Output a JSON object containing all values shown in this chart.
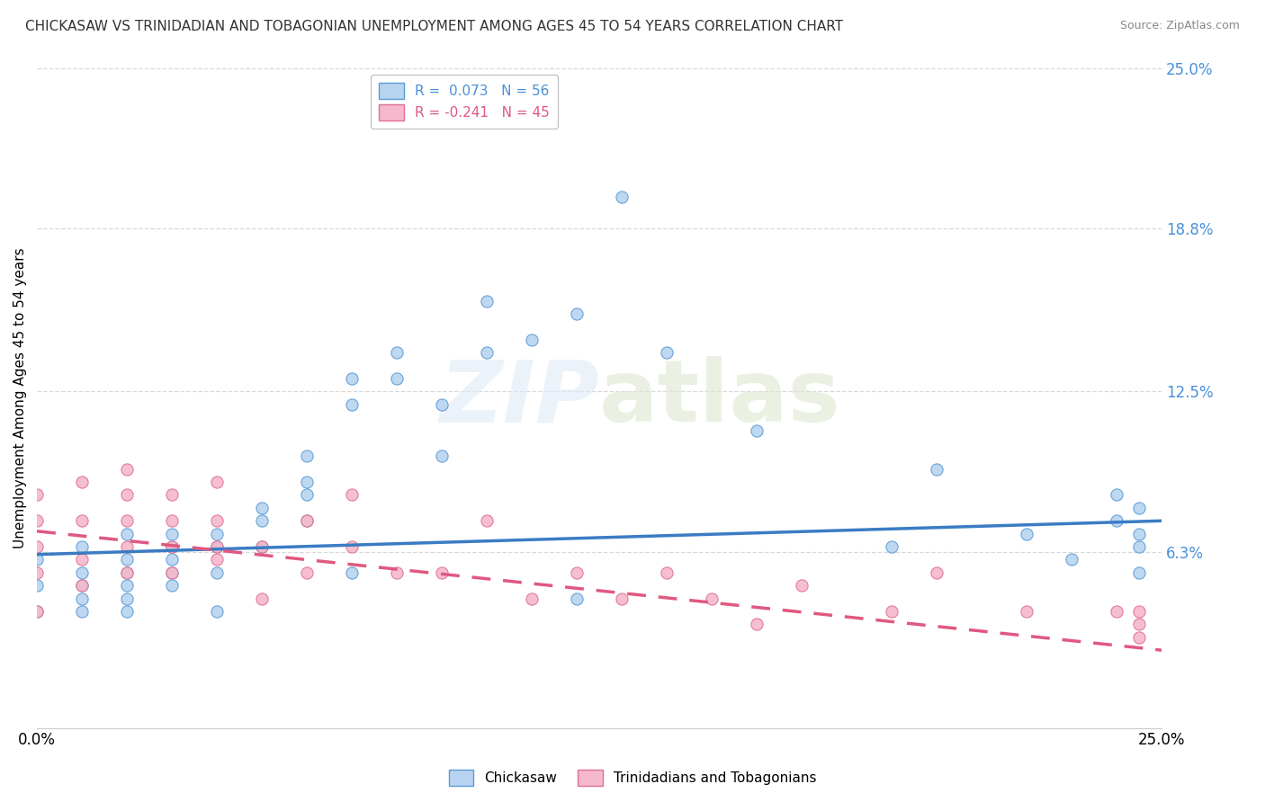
{
  "title": "CHICKASAW VS TRINIDADIAN AND TOBAGONIAN UNEMPLOYMENT AMONG AGES 45 TO 54 YEARS CORRELATION CHART",
  "source": "Source: ZipAtlas.com",
  "ylabel": "Unemployment Among Ages 45 to 54 years",
  "xlim": [
    0.0,
    0.25
  ],
  "ylim": [
    -0.005,
    0.25
  ],
  "ytick_labels": [
    "6.3%",
    "12.5%",
    "18.8%",
    "25.0%"
  ],
  "ytick_values": [
    0.063,
    0.125,
    0.188,
    0.25
  ],
  "chickasaw_color": "#b8d4f0",
  "chickasaw_edge": "#5b9bd5",
  "trinidadian_color": "#f5b8cc",
  "trinidadian_edge": "#e07090",
  "trendline_chickasaw_color": "#3a7cc4",
  "trendline_trinidadian_color": "#e05880",
  "grid_color": "#d8d8d8",
  "background_color": "#ffffff",
  "chickasaw_scatter_x": [
    0.0,
    0.0,
    0.0,
    0.01,
    0.01,
    0.01,
    0.01,
    0.01,
    0.02,
    0.02,
    0.02,
    0.02,
    0.02,
    0.02,
    0.03,
    0.03,
    0.03,
    0.03,
    0.03,
    0.04,
    0.04,
    0.04,
    0.04,
    0.05,
    0.05,
    0.05,
    0.06,
    0.06,
    0.06,
    0.06,
    0.07,
    0.07,
    0.07,
    0.08,
    0.08,
    0.09,
    0.09,
    0.1,
    0.1,
    0.11,
    0.12,
    0.12,
    0.13,
    0.14,
    0.16,
    0.19,
    0.2,
    0.22,
    0.23,
    0.24,
    0.24,
    0.245,
    0.245,
    0.245,
    0.245
  ],
  "chickasaw_scatter_y": [
    0.05,
    0.04,
    0.06,
    0.055,
    0.065,
    0.045,
    0.05,
    0.04,
    0.055,
    0.06,
    0.05,
    0.07,
    0.04,
    0.045,
    0.065,
    0.07,
    0.06,
    0.055,
    0.05,
    0.07,
    0.065,
    0.055,
    0.04,
    0.075,
    0.08,
    0.065,
    0.1,
    0.09,
    0.085,
    0.075,
    0.13,
    0.12,
    0.055,
    0.14,
    0.13,
    0.12,
    0.1,
    0.16,
    0.14,
    0.145,
    0.155,
    0.045,
    0.2,
    0.14,
    0.11,
    0.065,
    0.095,
    0.07,
    0.06,
    0.085,
    0.075,
    0.08,
    0.07,
    0.065,
    0.055
  ],
  "trinidadian_scatter_x": [
    0.0,
    0.0,
    0.0,
    0.0,
    0.0,
    0.01,
    0.01,
    0.01,
    0.01,
    0.02,
    0.02,
    0.02,
    0.02,
    0.02,
    0.03,
    0.03,
    0.03,
    0.03,
    0.04,
    0.04,
    0.04,
    0.04,
    0.05,
    0.05,
    0.06,
    0.06,
    0.07,
    0.07,
    0.08,
    0.09,
    0.1,
    0.11,
    0.12,
    0.13,
    0.14,
    0.15,
    0.16,
    0.17,
    0.19,
    0.2,
    0.22,
    0.24,
    0.245,
    0.245,
    0.245
  ],
  "trinidadian_scatter_y": [
    0.065,
    0.055,
    0.075,
    0.085,
    0.04,
    0.09,
    0.075,
    0.06,
    0.05,
    0.085,
    0.075,
    0.065,
    0.095,
    0.055,
    0.075,
    0.065,
    0.055,
    0.085,
    0.075,
    0.065,
    0.09,
    0.06,
    0.065,
    0.045,
    0.075,
    0.055,
    0.065,
    0.085,
    0.055,
    0.055,
    0.075,
    0.045,
    0.055,
    0.045,
    0.055,
    0.045,
    0.035,
    0.05,
    0.04,
    0.055,
    0.04,
    0.04,
    0.035,
    0.04,
    0.03
  ],
  "trendline_chick_x0": 0.0,
  "trendline_chick_y0": 0.062,
  "trendline_chick_x1": 0.25,
  "trendline_chick_y1": 0.075,
  "trendline_trin_x0": 0.0,
  "trendline_trin_y0": 0.071,
  "trendline_trin_x1": 0.25,
  "trendline_trin_y1": 0.025
}
